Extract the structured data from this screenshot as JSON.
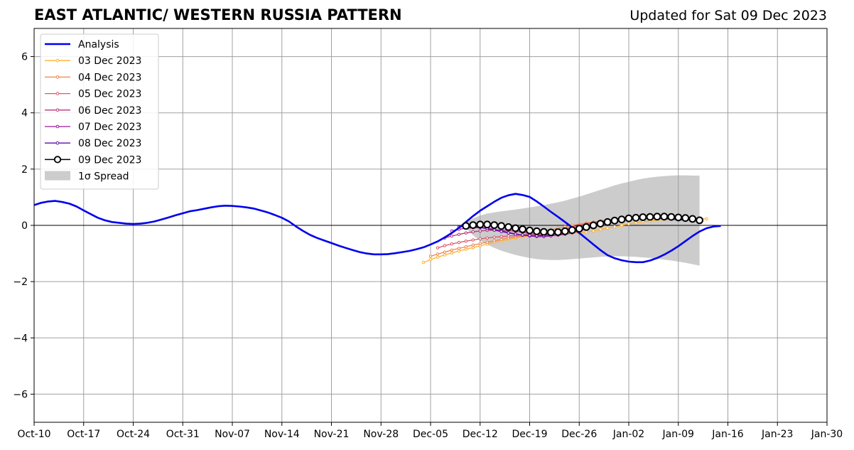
{
  "chart_data": {
    "type": "line",
    "title": "EAST ATLANTIC/ WESTERN RUSSIA PATTERN",
    "subtitle": "Updated for Sat 09 Dec 2023",
    "xlabel": "",
    "ylabel": "",
    "x_range": [
      "2023-10-10",
      "2024-01-30"
    ],
    "ylim": [
      -7,
      7
    ],
    "y_ticks": [
      -6,
      -4,
      -2,
      0,
      2,
      4,
      6
    ],
    "y_tick_labels": [
      "−6",
      "−4",
      "−2",
      "0",
      "2",
      "4",
      "6"
    ],
    "x_ticks": [
      "2023-10-10",
      "2023-10-17",
      "2023-10-24",
      "2023-10-31",
      "2023-11-07",
      "2023-11-14",
      "2023-11-21",
      "2023-11-28",
      "2023-12-05",
      "2023-12-12",
      "2023-12-19",
      "2023-12-26",
      "2024-01-02",
      "2024-01-09",
      "2024-01-16",
      "2024-01-23",
      "2024-01-30"
    ],
    "x_tick_labels": [
      "Oct-10",
      "Oct-17",
      "Oct-24",
      "Oct-31",
      "Nov-07",
      "Nov-14",
      "Nov-21",
      "Nov-28",
      "Dec-05",
      "Dec-12",
      "Dec-19",
      "Dec-26",
      "Jan-02",
      "Jan-09",
      "Jan-16",
      "Jan-23",
      "Jan-30"
    ],
    "grid": true,
    "legend_position": "top-left",
    "analysis": {
      "name": "Analysis",
      "color": "#0000ee",
      "start": "2023-10-10",
      "values": [
        0.72,
        0.8,
        0.85,
        0.87,
        0.83,
        0.77,
        0.67,
        0.53,
        0.4,
        0.27,
        0.18,
        0.12,
        0.09,
        0.06,
        0.05,
        0.06,
        0.09,
        0.14,
        0.21,
        0.28,
        0.36,
        0.43,
        0.5,
        0.54,
        0.59,
        0.64,
        0.68,
        0.7,
        0.69,
        0.67,
        0.64,
        0.6,
        0.53,
        0.46,
        0.37,
        0.27,
        0.14,
        -0.04,
        -0.2,
        -0.34,
        -0.45,
        -0.54,
        -0.63,
        -0.72,
        -0.8,
        -0.88,
        -0.95,
        -1.0,
        -1.03,
        -1.03,
        -1.02,
        -0.99,
        -0.95,
        -0.91,
        -0.85,
        -0.78,
        -0.68,
        -0.57,
        -0.43,
        -0.27,
        -0.09,
        0.12,
        0.33,
        0.52,
        0.68,
        0.84,
        0.98,
        1.07,
        1.12,
        1.08,
        1.01,
        0.85,
        0.67,
        0.48,
        0.3,
        0.12,
        -0.07,
        -0.27,
        -0.47,
        -0.68,
        -0.88,
        -1.06,
        -1.17,
        -1.24,
        -1.29,
        -1.31,
        -1.31,
        -1.25,
        -1.16,
        -1.04,
        -0.9,
        -0.74,
        -0.56,
        -0.38,
        -0.22,
        -0.1,
        -0.04,
        -0.02
      ]
    },
    "forecasts": [
      {
        "name": "03 Dec 2023",
        "color": "#fdb12f",
        "start": "2023-12-04",
        "values": [
          -1.32,
          -1.22,
          -1.13,
          -1.05,
          -0.98,
          -0.91,
          -0.85,
          -0.79,
          -0.73,
          -0.67,
          -0.61,
          -0.55,
          -0.5,
          -0.45,
          -0.41,
          -0.37,
          -0.34,
          -0.32,
          -0.3,
          -0.29,
          -0.28,
          -0.27,
          -0.26,
          -0.24,
          -0.2,
          -0.15,
          -0.1,
          -0.05,
          0.0,
          0.05,
          0.09,
          0.13,
          0.16,
          0.19,
          0.21,
          0.22,
          0.23,
          0.24,
          0.24,
          0.24,
          0.23
        ]
      },
      {
        "name": "04 Dec 2023",
        "color": "#f2844b",
        "start": "2023-12-05",
        "values": [
          -1.1,
          -1.02,
          -0.95,
          -0.88,
          -0.82,
          -0.76,
          -0.7,
          -0.65,
          -0.6,
          -0.55,
          -0.5,
          -0.45,
          -0.41,
          -0.37,
          -0.33,
          -0.28,
          -0.22,
          -0.16,
          -0.1,
          -0.05,
          0.0,
          0.04,
          0.08,
          0.12,
          0.15,
          0.18,
          0.21,
          0.23,
          0.25,
          0.26,
          0.27,
          0.28,
          0.28,
          0.28,
          0.27,
          0.26,
          0.25,
          0.23,
          0.21
        ]
      },
      {
        "name": "05 Dec 2023",
        "color": "#d9586a",
        "start": "2023-12-06",
        "values": [
          -0.8,
          -0.72,
          -0.66,
          -0.61,
          -0.56,
          -0.52,
          -0.48,
          -0.45,
          -0.42,
          -0.4,
          -0.38,
          -0.36,
          -0.34,
          -0.32,
          -0.3,
          -0.27,
          -0.23,
          -0.18,
          -0.12,
          -0.06,
          0.0,
          0.05,
          0.1,
          0.15,
          0.19,
          0.23,
          0.26,
          0.29,
          0.31,
          0.32,
          0.33,
          0.33,
          0.32,
          0.31,
          0.29,
          0.27,
          0.25
        ]
      },
      {
        "name": "06 Dec 2023",
        "color": "#b5367a",
        "start": "2023-12-07",
        "values": [
          -0.45,
          -0.38,
          -0.32,
          -0.27,
          -0.23,
          -0.2,
          -0.18,
          -0.17,
          -0.17,
          -0.18,
          -0.21,
          -0.25,
          -0.29,
          -0.33,
          -0.35,
          -0.36,
          -0.35,
          -0.32,
          -0.27,
          -0.2,
          -0.13,
          -0.06,
          0.01,
          0.08,
          0.14,
          0.19,
          0.23,
          0.26,
          0.28,
          0.29,
          0.29,
          0.28,
          0.27,
          0.25,
          0.23
        ]
      },
      {
        "name": "07 Dec 2023",
        "color": "#9c179e",
        "start": "2023-12-08",
        "values": [
          -0.2,
          -0.14,
          -0.1,
          -0.08,
          -0.08,
          -0.1,
          -0.14,
          -0.19,
          -0.25,
          -0.3,
          -0.35,
          -0.38,
          -0.4,
          -0.4,
          -0.38,
          -0.34,
          -0.28,
          -0.21,
          -0.13,
          -0.05,
          0.03,
          0.1,
          0.16,
          0.21,
          0.25,
          0.28,
          0.3,
          0.31,
          0.3,
          0.29,
          0.27,
          0.24,
          0.21,
          0.19
        ]
      },
      {
        "name": "08 Dec 2023",
        "color": "#5a0ea8",
        "start": "2023-12-09",
        "values": [
          -0.06,
          -0.03,
          -0.04,
          -0.07,
          -0.12,
          -0.17,
          -0.22,
          -0.27,
          -0.31,
          -0.34,
          -0.36,
          -0.37,
          -0.36,
          -0.33,
          -0.29,
          -0.23,
          -0.16,
          -0.09,
          -0.02,
          0.05,
          0.11,
          0.16,
          0.2,
          0.23,
          0.25,
          0.26,
          0.27,
          0.26,
          0.25,
          0.24,
          0.22,
          0.2,
          0.18
        ]
      },
      {
        "name": "09 Dec 2023",
        "color": "#000000",
        "start": "2023-12-10",
        "values": [
          -0.02,
          0.01,
          0.03,
          0.03,
          0.01,
          -0.02,
          -0.06,
          -0.1,
          -0.14,
          -0.18,
          -0.21,
          -0.23,
          -0.25,
          -0.24,
          -0.21,
          -0.17,
          -0.12,
          -0.06,
          0.0,
          0.06,
          0.12,
          0.17,
          0.21,
          0.25,
          0.27,
          0.29,
          0.3,
          0.31,
          0.31,
          0.3,
          0.28,
          0.26,
          0.23,
          0.18
        ]
      }
    ],
    "spread": {
      "name": "1σ Spread",
      "color": "#cccccc",
      "start": "2023-12-10",
      "upper": [
        0.1,
        0.25,
        0.35,
        0.42,
        0.46,
        0.5,
        0.53,
        0.56,
        0.6,
        0.64,
        0.68,
        0.72,
        0.77,
        0.82,
        0.88,
        0.95,
        1.02,
        1.1,
        1.18,
        1.26,
        1.34,
        1.42,
        1.49,
        1.55,
        1.61,
        1.66,
        1.7,
        1.73,
        1.75,
        1.77,
        1.78,
        1.78,
        1.77,
        1.77
      ],
      "lower": [
        -0.1,
        -0.35,
        -0.55,
        -0.68,
        -0.8,
        -0.9,
        -0.98,
        -1.05,
        -1.11,
        -1.16,
        -1.2,
        -1.22,
        -1.23,
        -1.23,
        -1.22,
        -1.2,
        -1.18,
        -1.16,
        -1.14,
        -1.12,
        -1.11,
        -1.1,
        -1.1,
        -1.11,
        -1.12,
        -1.14,
        -1.16,
        -1.19,
        -1.22,
        -1.25,
        -1.29,
        -1.33,
        -1.38,
        -1.43
      ]
    }
  }
}
